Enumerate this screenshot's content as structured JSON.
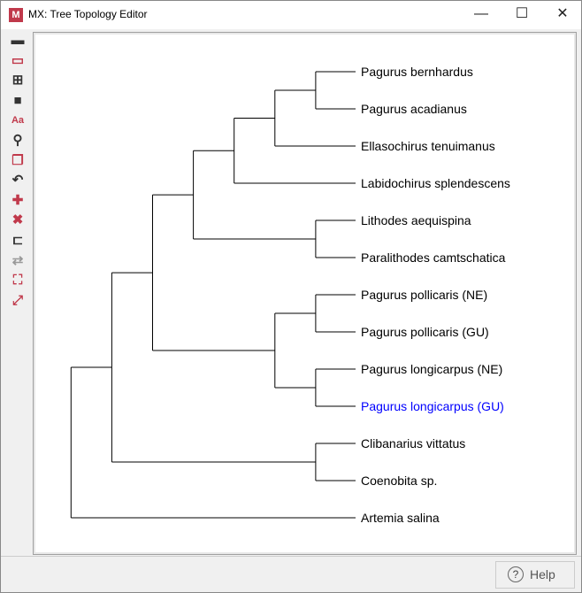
{
  "window": {
    "title": "MX: Tree Topology Editor",
    "logo": "M",
    "minimize": "—",
    "maximize": "☐",
    "close": "✕"
  },
  "toolbar": [
    {
      "name": "open-folder-icon",
      "glyph": "▬",
      "color": "#333333"
    },
    {
      "name": "open-tray-icon",
      "glyph": "▭",
      "color": "#c0394b"
    },
    {
      "name": "new-file-icon",
      "glyph": "⊞",
      "color": "#333333"
    },
    {
      "name": "save-icon",
      "glyph": "■",
      "color": "#333333"
    },
    {
      "name": "font-icon",
      "glyph": "Aa",
      "color": "#c0394b"
    },
    {
      "name": "search-icon",
      "glyph": "⚲",
      "color": "#333333"
    },
    {
      "name": "copy-icon",
      "glyph": "❐",
      "color": "#c0394b"
    },
    {
      "name": "undo-icon",
      "glyph": "↶",
      "color": "#333333"
    },
    {
      "name": "add-icon",
      "glyph": "✚",
      "color": "#c0394b"
    },
    {
      "name": "delete-icon",
      "glyph": "✖",
      "color": "#c0394b"
    },
    {
      "name": "tree-layout-icon",
      "glyph": "⊏",
      "color": "#333333"
    },
    {
      "name": "swap-icon",
      "glyph": "⇄",
      "color": "#999999"
    },
    {
      "name": "fit-icon",
      "glyph": "⛶",
      "color": "#c0394b"
    },
    {
      "name": "resize-icon",
      "glyph": "⤢",
      "color": "#c0394b"
    }
  ],
  "tree": [
    [
      [
        [
          [
            [
              [
                "Pagurus bernhardus",
                "Pagurus acadianus"
              ],
              "Ellasochirus tenuimanus"
            ],
            "Labidochirus splendescens"
          ],
          [
            "Lithodes aequispina",
            "Paralithodes camtschatica"
          ]
        ],
        [
          [
            "Pagurus pollicaris (NE)",
            "Pagurus pollicaris (GU)"
          ],
          [
            "Pagurus longicarpus (NE)",
            "Pagurus longicarpus (GU)"
          ]
        ]
      ],
      [
        "Clibanarius vittatus",
        "Coenobita sp."
      ]
    ],
    "Artemia salina"
  ],
  "selected_leaf": "Pagurus longicarpus (GU)",
  "selected_color": "#0000ff",
  "help": {
    "icon": "?",
    "label": "Help"
  }
}
